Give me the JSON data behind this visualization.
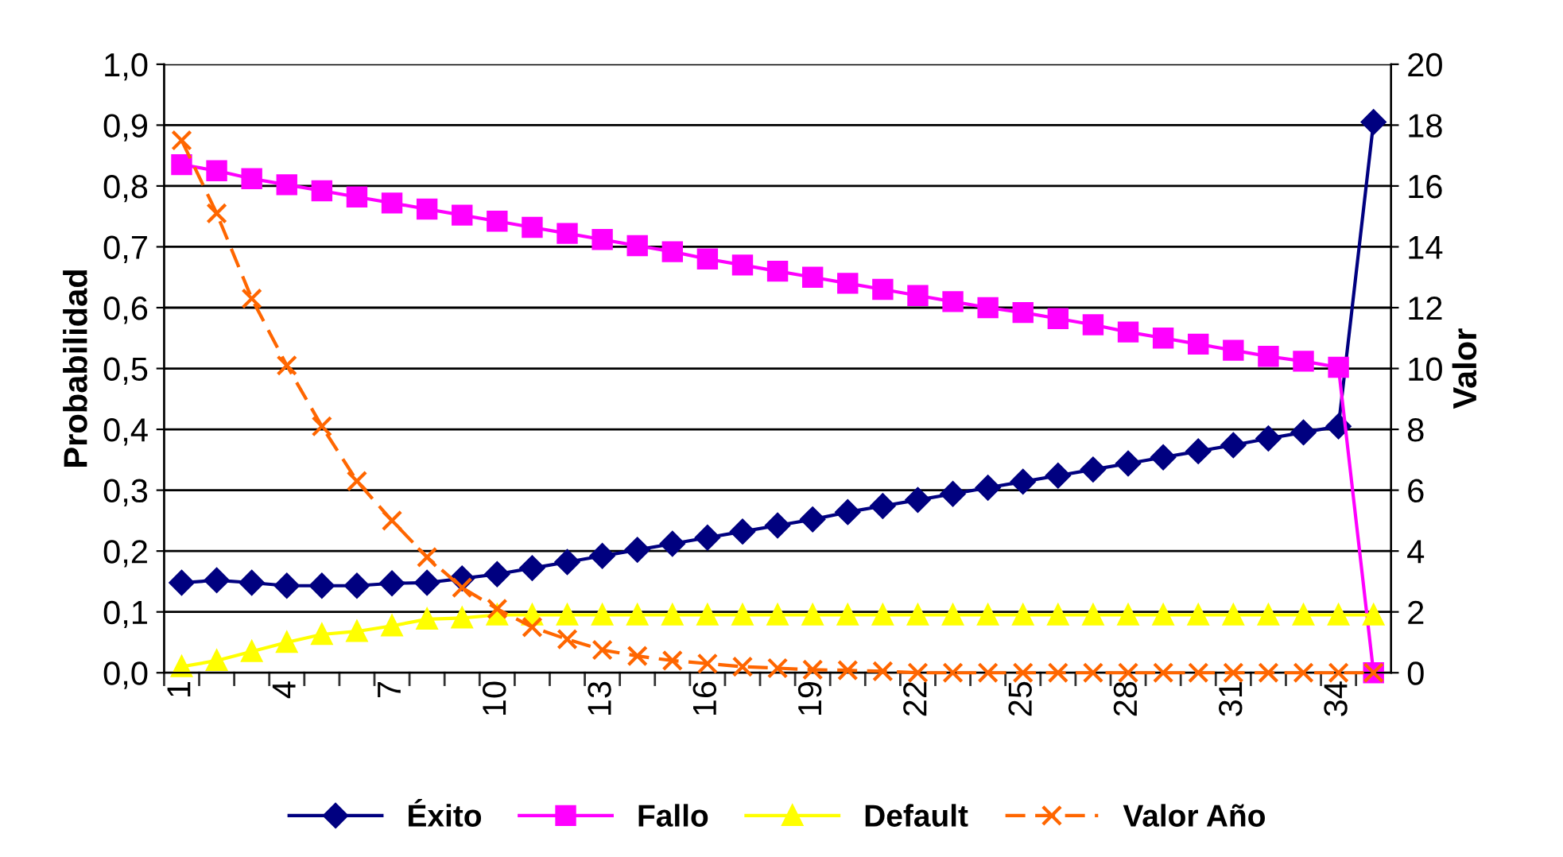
{
  "chart_data": {
    "type": "line",
    "ylabel": "Probabilidad",
    "y2label": "Valor",
    "categories": [
      "1",
      null,
      null,
      "4",
      null,
      null,
      "7",
      null,
      null,
      "10",
      null,
      null,
      "13",
      null,
      null,
      "16",
      null,
      null,
      "19",
      null,
      null,
      "22",
      null,
      null,
      "25",
      null,
      null,
      "28",
      null,
      null,
      "31",
      null,
      null,
      "34",
      null
    ],
    "series": [
      {
        "name": "Éxito",
        "color": "#000080",
        "marker": "diamond",
        "line_style": "solid",
        "values": [
          0.148,
          0.152,
          0.148,
          0.143,
          0.143,
          0.143,
          0.147,
          0.148,
          0.155,
          0.162,
          0.172,
          0.182,
          0.192,
          0.202,
          0.212,
          0.222,
          0.232,
          0.242,
          0.252,
          0.264,
          0.274,
          0.284,
          0.294,
          0.304,
          0.314,
          0.324,
          0.334,
          0.344,
          0.354,
          0.364,
          0.374,
          0.385,
          0.395,
          0.405,
          0.905
        ]
      },
      {
        "name": "Fallo",
        "color": "#ff00ff",
        "marker": "square",
        "line_style": "solid",
        "values": [
          0.835,
          0.825,
          0.812,
          0.802,
          0.792,
          0.782,
          0.772,
          0.762,
          0.752,
          0.742,
          0.732,
          0.722,
          0.712,
          0.702,
          0.692,
          0.68,
          0.67,
          0.66,
          0.65,
          0.64,
          0.63,
          0.62,
          0.61,
          0.6,
          0.592,
          0.582,
          0.572,
          0.56,
          0.55,
          0.54,
          0.53,
          0.52,
          0.512,
          0.502,
          0.0
        ]
      },
      {
        "name": "Default",
        "color": "#ffff00",
        "marker": "triangle",
        "line_style": "solid",
        "values": [
          0.01,
          0.02,
          0.035,
          0.05,
          0.063,
          0.068,
          0.077,
          0.088,
          0.09,
          0.095,
          0.095,
          0.095,
          0.095,
          0.095,
          0.095,
          0.095,
          0.095,
          0.095,
          0.095,
          0.095,
          0.095,
          0.095,
          0.095,
          0.095,
          0.095,
          0.095,
          0.095,
          0.095,
          0.095,
          0.095,
          0.095,
          0.095,
          0.095,
          0.095,
          0.095
        ]
      },
      {
        "name": "Valor Año",
        "color": "#ff6600",
        "marker": "cross",
        "line_style": "dashed",
        "axis": "y2",
        "values": [
          17.5,
          15.1,
          12.3,
          10.1,
          8.1,
          6.3,
          5.0,
          3.8,
          2.8,
          2.1,
          1.5,
          1.1,
          0.75,
          0.55,
          0.4,
          0.3,
          0.2,
          0.15,
          0.1,
          0.08,
          0.05,
          0,
          0,
          0,
          0,
          0,
          0,
          0,
          0,
          0,
          0,
          0,
          0,
          0,
          0
        ]
      }
    ],
    "ylim": [
      0,
      1
    ],
    "yticks": [
      {
        "value": 0,
        "label": "0,0"
      },
      {
        "value": 0.1,
        "label": "0,1"
      },
      {
        "value": 0.2,
        "label": "0,2"
      },
      {
        "value": 0.3,
        "label": "0,3"
      },
      {
        "value": 0.4,
        "label": "0,4"
      },
      {
        "value": 0.5,
        "label": "0,5"
      },
      {
        "value": 0.6,
        "label": "0,6"
      },
      {
        "value": 0.7,
        "label": "0,7"
      },
      {
        "value": 0.8,
        "label": "0,8"
      },
      {
        "value": 0.9,
        "label": "0,9"
      },
      {
        "value": 1,
        "label": "1,0"
      }
    ],
    "y2lim": [
      0,
      20
    ],
    "y2ticks": [
      0,
      2,
      4,
      6,
      8,
      10,
      12,
      14,
      16,
      18,
      20
    ],
    "grid": "y",
    "legend": "bottom"
  }
}
